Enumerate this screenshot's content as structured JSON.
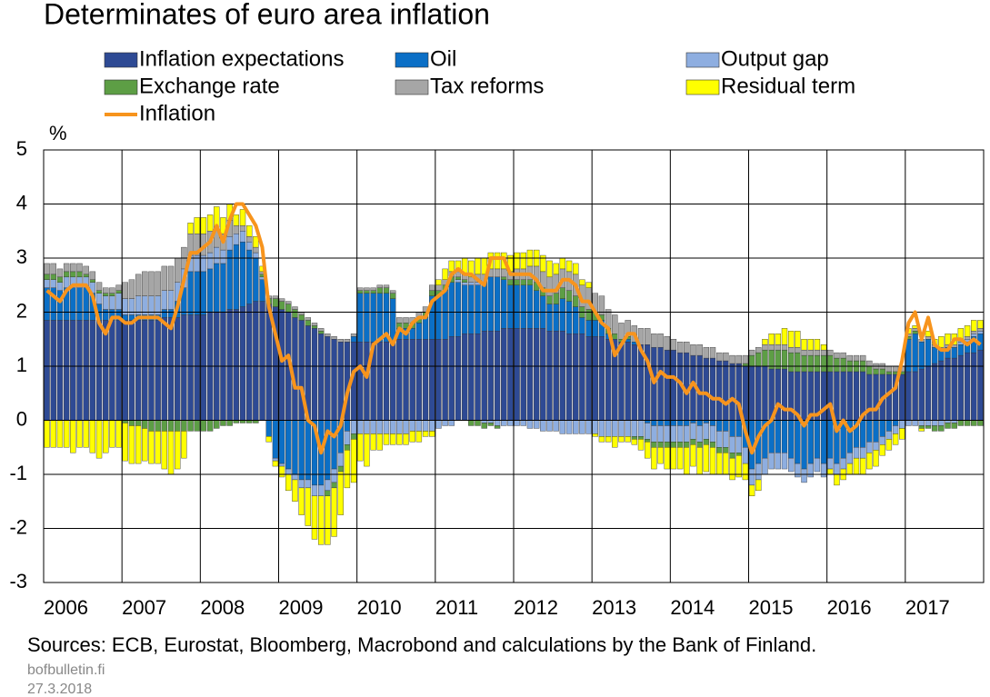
{
  "chart_data": {
    "type": "bar",
    "title": "Determinates of euro area inflation",
    "y_label": "%",
    "sources": "Sources: ECB, Eurostat, Bloomberg, Macrobond and calculations by the Bank of Finland.",
    "site": "bofbulletin.fi",
    "date": "27.3.2018",
    "legend": "top",
    "grid": true,
    "stacked": true,
    "ylim": [
      -3,
      5
    ],
    "yticks": [
      -3,
      -2,
      -1,
      0,
      1,
      2,
      3,
      4,
      5
    ],
    "categories": [
      "2006",
      null,
      null,
      null,
      null,
      null,
      null,
      null,
      null,
      null,
      null,
      null,
      "2007",
      null,
      null,
      null,
      null,
      null,
      null,
      null,
      null,
      null,
      null,
      null,
      "2008",
      null,
      null,
      null,
      null,
      null,
      null,
      null,
      null,
      null,
      null,
      null,
      "2009",
      null,
      null,
      null,
      null,
      null,
      null,
      null,
      null,
      null,
      null,
      null,
      "2010",
      null,
      null,
      null,
      null,
      null,
      null,
      null,
      null,
      null,
      null,
      null,
      "2011",
      null,
      null,
      null,
      null,
      null,
      null,
      null,
      null,
      null,
      null,
      null,
      "2012",
      null,
      null,
      null,
      null,
      null,
      null,
      null,
      null,
      null,
      null,
      null,
      "2013",
      null,
      null,
      null,
      null,
      null,
      null,
      null,
      null,
      null,
      null,
      null,
      "2014",
      null,
      null,
      null,
      null,
      null,
      null,
      null,
      null,
      null,
      null,
      null,
      "2015",
      null,
      null,
      null,
      null,
      null,
      null,
      null,
      null,
      null,
      null,
      null,
      "2016",
      null,
      null,
      null,
      null,
      null,
      null,
      null,
      null,
      null,
      null,
      null,
      "2017",
      null,
      null,
      null,
      null,
      null,
      null,
      null,
      null,
      null,
      null,
      null
    ],
    "series": [
      {
        "name": "Inflation expectations",
        "color": "#2e4a94",
        "type": "bar",
        "values": [
          1.85,
          1.85,
          1.85,
          1.85,
          1.85,
          1.85,
          1.85,
          1.85,
          1.85,
          1.85,
          1.85,
          1.85,
          1.85,
          1.85,
          1.85,
          1.85,
          1.85,
          1.85,
          1.9,
          1.9,
          1.9,
          1.95,
          1.95,
          1.95,
          1.95,
          2.0,
          2.0,
          2.0,
          2.05,
          2.05,
          2.1,
          2.15,
          2.2,
          2.2,
          2.15,
          2.1,
          2.05,
          2.0,
          1.9,
          1.85,
          1.75,
          1.7,
          1.6,
          1.55,
          1.5,
          1.45,
          1.45,
          1.45,
          1.45,
          1.45,
          1.45,
          1.45,
          1.45,
          1.45,
          1.5,
          1.5,
          1.5,
          1.5,
          1.5,
          1.5,
          1.5,
          1.5,
          1.55,
          1.55,
          1.6,
          1.6,
          1.6,
          1.65,
          1.65,
          1.65,
          1.7,
          1.7,
          1.7,
          1.7,
          1.7,
          1.7,
          1.7,
          1.65,
          1.65,
          1.65,
          1.6,
          1.6,
          1.6,
          1.55,
          1.55,
          1.55,
          1.5,
          1.5,
          1.45,
          1.45,
          1.4,
          1.4,
          1.4,
          1.35,
          1.35,
          1.3,
          1.3,
          1.25,
          1.25,
          1.2,
          1.2,
          1.15,
          1.15,
          1.1,
          1.1,
          1.05,
          1.05,
          1.0,
          1.0,
          1.0,
          1.0,
          0.95,
          0.95,
          0.95,
          0.9,
          0.9,
          0.9,
          0.9,
          0.9,
          0.9,
          0.9,
          0.9,
          0.9,
          0.9,
          0.9,
          0.9,
          0.85,
          0.85,
          0.85,
          0.85,
          0.85,
          0.85,
          0.9,
          0.9,
          0.95,
          1.0,
          1.05,
          1.1,
          1.15,
          1.15,
          1.2,
          1.25,
          1.25,
          1.3
        ]
      },
      {
        "name": "Oil",
        "color": "#0b6fc6",
        "type": "bar",
        "values": [
          0.6,
          0.6,
          0.55,
          0.6,
          0.6,
          0.6,
          0.6,
          0.5,
          0.3,
          0.2,
          0.2,
          0.2,
          0.1,
          0.1,
          0.1,
          0.1,
          0.1,
          0.1,
          0.15,
          0.15,
          0.3,
          0.5,
          0.8,
          0.8,
          0.8,
          0.8,
          0.9,
          0.9,
          1.1,
          1.2,
          1.2,
          1.0,
          0.8,
          0.4,
          -0.3,
          -0.7,
          -0.8,
          -0.9,
          -1.0,
          -1.1,
          -1.1,
          -1.2,
          -1.2,
          -1.1,
          -0.9,
          -0.6,
          -0.2,
          0.1,
          0.9,
          0.9,
          0.9,
          0.9,
          0.9,
          0.8,
          0.2,
          0.2,
          0.2,
          0.3,
          0.4,
          0.8,
          0.8,
          0.9,
          1.0,
          1.0,
          0.9,
          0.9,
          0.9,
          0.9,
          1.0,
          1.0,
          0.9,
          0.8,
          0.8,
          0.8,
          0.8,
          0.7,
          0.6,
          0.5,
          0.5,
          0.6,
          0.6,
          0.5,
          0.3,
          0.3,
          0.3,
          0.3,
          0.1,
          0.0,
          0.0,
          0.05,
          0.05,
          0.0,
          -0.05,
          -0.1,
          -0.1,
          -0.1,
          -0.1,
          -0.1,
          -0.1,
          -0.05,
          -0.1,
          -0.05,
          -0.1,
          -0.2,
          -0.2,
          -0.3,
          -0.3,
          -0.5,
          -0.9,
          -0.8,
          -0.7,
          -0.6,
          -0.6,
          -0.6,
          -0.7,
          -0.8,
          -0.9,
          -0.8,
          -0.7,
          -0.8,
          -0.7,
          -0.8,
          -0.7,
          -0.6,
          -0.5,
          -0.5,
          -0.4,
          -0.4,
          -0.3,
          -0.2,
          -0.1,
          0.0,
          0.6,
          0.7,
          0.5,
          0.5,
          0.3,
          0.2,
          0.2,
          0.2,
          0.2,
          0.2,
          0.3,
          0.3
        ]
      },
      {
        "name": "Output gap",
        "color": "#8eaee0",
        "type": "bar",
        "values": [
          0.15,
          0.15,
          0.15,
          0.2,
          0.2,
          0.2,
          0.2,
          0.2,
          0.2,
          0.25,
          0.25,
          0.3,
          0.3,
          0.3,
          0.35,
          0.35,
          0.35,
          0.35,
          0.35,
          0.35,
          0.35,
          0.35,
          0.3,
          0.3,
          0.3,
          0.3,
          0.3,
          0.25,
          0.25,
          0.2,
          0.2,
          0.15,
          0.1,
          0.05,
          0.0,
          -0.05,
          -0.05,
          -0.1,
          -0.1,
          -0.15,
          -0.15,
          -0.2,
          -0.2,
          -0.2,
          -0.25,
          -0.25,
          -0.25,
          -0.25,
          -0.25,
          -0.25,
          -0.25,
          -0.25,
          -0.25,
          -0.25,
          -0.25,
          -0.25,
          -0.2,
          -0.2,
          -0.2,
          -0.2,
          -0.15,
          -0.1,
          -0.1,
          0.05,
          0.05,
          0.05,
          0.05,
          -0.05,
          -0.05,
          -0.1,
          -0.1,
          -0.1,
          -0.1,
          -0.1,
          -0.15,
          -0.15,
          -0.2,
          -0.2,
          -0.2,
          -0.25,
          -0.25,
          -0.25,
          -0.25,
          -0.25,
          -0.25,
          -0.3,
          -0.3,
          -0.3,
          -0.3,
          -0.3,
          -0.3,
          -0.3,
          -0.3,
          -0.3,
          -0.3,
          -0.3,
          -0.3,
          -0.3,
          -0.3,
          -0.3,
          -0.3,
          -0.3,
          -0.3,
          -0.3,
          -0.3,
          -0.3,
          -0.3,
          -0.3,
          -0.3,
          -0.3,
          -0.3,
          -0.3,
          -0.3,
          -0.3,
          -0.25,
          -0.25,
          -0.25,
          -0.25,
          -0.25,
          -0.25,
          -0.2,
          -0.2,
          -0.2,
          -0.2,
          -0.2,
          -0.2,
          -0.2,
          -0.15,
          -0.15,
          -0.15,
          -0.15,
          -0.15,
          -0.1,
          -0.1,
          -0.1,
          -0.1,
          -0.1,
          -0.1,
          -0.05,
          -0.05,
          0.05,
          0.05,
          0.05,
          0.05
        ]
      },
      {
        "name": "Exchange rate",
        "color": "#5d9e45",
        "type": "bar",
        "values": [
          0.1,
          0.1,
          0.1,
          0.1,
          0.1,
          0.1,
          0.05,
          0.05,
          0.05,
          0.05,
          0.05,
          0.05,
          -0.05,
          -0.1,
          -0.1,
          -0.15,
          -0.2,
          -0.2,
          -0.2,
          -0.2,
          -0.2,
          -0.2,
          -0.2,
          -0.2,
          -0.2,
          -0.2,
          -0.15,
          -0.1,
          -0.1,
          -0.05,
          -0.05,
          -0.05,
          -0.05,
          0.05,
          0.1,
          0.15,
          0.15,
          0.15,
          0.15,
          0.1,
          0.1,
          0.05,
          0.05,
          -0.1,
          -0.1,
          -0.1,
          -0.1,
          -0.1,
          0.05,
          0.05,
          0.05,
          0.1,
          0.1,
          0.1,
          0.1,
          0.1,
          0.1,
          0.1,
          0.1,
          0.1,
          0.1,
          0.1,
          0.1,
          0.05,
          0.05,
          -0.1,
          -0.1,
          -0.1,
          -0.05,
          -0.05,
          0.05,
          0.1,
          0.1,
          0.1,
          0.1,
          0.15,
          0.15,
          0.15,
          0.2,
          0.2,
          0.2,
          0.2,
          0.2,
          0.2,
          0.15,
          0.1,
          0.1,
          0.1,
          0.05,
          0.05,
          -0.05,
          -0.05,
          -0.05,
          -0.1,
          -0.1,
          -0.1,
          -0.1,
          -0.1,
          -0.1,
          -0.1,
          -0.1,
          -0.1,
          -0.1,
          -0.1,
          -0.1,
          -0.1,
          -0.05,
          0.05,
          0.2,
          0.25,
          0.3,
          0.35,
          0.35,
          0.35,
          0.35,
          0.35,
          0.3,
          0.3,
          0.3,
          0.3,
          0.3,
          0.25,
          0.25,
          0.2,
          0.2,
          0.2,
          0.15,
          0.1,
          0.1,
          0.05,
          0.05,
          0.05,
          0.05,
          0.05,
          -0.05,
          -0.05,
          -0.1,
          -0.1,
          -0.1,
          -0.1,
          -0.1,
          -0.1,
          -0.1,
          -0.1
        ]
      },
      {
        "name": "Tax reforms",
        "color": "#a6a6a6",
        "type": "bar",
        "values": [
          0.2,
          0.2,
          0.15,
          0.15,
          0.15,
          0.15,
          0.15,
          0.15,
          0.15,
          0.1,
          0.1,
          0.1,
          0.3,
          0.35,
          0.4,
          0.45,
          0.45,
          0.45,
          0.45,
          0.45,
          0.45,
          0.4,
          0.4,
          0.4,
          0.4,
          0.4,
          0.35,
          0.3,
          0.3,
          0.15,
          0.1,
          0.1,
          0.1,
          0.05,
          0.05,
          0.05,
          0.05,
          0.05,
          0.05,
          0.05,
          0.05,
          0.05,
          0.05,
          0.05,
          0.05,
          0.05,
          0.05,
          0.05,
          0.05,
          0.05,
          0.05,
          0.05,
          0.05,
          0.05,
          0.1,
          0.1,
          0.1,
          0.1,
          0.1,
          0.1,
          0.1,
          0.1,
          0.1,
          0.1,
          0.1,
          0.1,
          0.15,
          0.15,
          0.15,
          0.15,
          0.15,
          0.15,
          0.2,
          0.2,
          0.25,
          0.3,
          0.3,
          0.35,
          0.35,
          0.35,
          0.35,
          0.4,
          0.4,
          0.4,
          0.35,
          0.35,
          0.35,
          0.35,
          0.3,
          0.3,
          0.3,
          0.3,
          0.3,
          0.25,
          0.25,
          0.25,
          0.2,
          0.2,
          0.2,
          0.2,
          0.2,
          0.2,
          0.2,
          0.15,
          0.15,
          0.15,
          0.15,
          0.15,
          0.1,
          0.1,
          0.1,
          0.1,
          0.1,
          0.1,
          0.1,
          0.1,
          0.1,
          0.1,
          0.1,
          0.1,
          0.1,
          0.1,
          0.1,
          0.1,
          0.1,
          0.1,
          0.1,
          0.1,
          0.1,
          0.1,
          0.1,
          0.1,
          0.05,
          0.05,
          0.05,
          0.05,
          0.05,
          0.05,
          0.05,
          0.05,
          0.05,
          0.05,
          0.05,
          0.05
        ]
      },
      {
        "name": "Residual term",
        "color": "#ffff00",
        "type": "bar",
        "values": [
          -0.5,
          -0.5,
          -0.5,
          -0.5,
          -0.6,
          -0.5,
          -0.5,
          -0.6,
          -0.7,
          -0.6,
          -0.5,
          -0.5,
          -0.7,
          -0.7,
          -0.7,
          -0.6,
          -0.6,
          -0.6,
          -0.7,
          -0.8,
          -0.7,
          -0.5,
          0.2,
          0.3,
          0.3,
          0.3,
          0.4,
          0.3,
          0.3,
          0.2,
          0.3,
          0.2,
          0.2,
          0.1,
          -0.1,
          -0.1,
          -0.2,
          -0.3,
          -0.4,
          -0.5,
          -0.7,
          -0.8,
          -0.9,
          -0.9,
          -0.9,
          -0.8,
          -0.7,
          -0.8,
          -0.5,
          -0.6,
          -0.3,
          -0.3,
          -0.2,
          -0.2,
          -0.2,
          -0.2,
          -0.2,
          -0.2,
          -0.1,
          -0.1,
          0.1,
          0.2,
          0.2,
          0.2,
          0.3,
          0.3,
          0.3,
          0.3,
          0.3,
          0.3,
          0.3,
          0.3,
          0.3,
          0.3,
          0.3,
          0.3,
          0.3,
          0.3,
          0.2,
          0.2,
          0.2,
          0.2,
          0.1,
          0.1,
          -0.05,
          -0.1,
          -0.1,
          -0.2,
          -0.1,
          -0.1,
          -0.1,
          -0.2,
          -0.3,
          -0.4,
          -0.3,
          -0.4,
          -0.4,
          -0.4,
          -0.5,
          -0.4,
          -0.5,
          -0.5,
          -0.5,
          -0.4,
          -0.4,
          -0.4,
          -0.4,
          -0.3,
          -0.2,
          -0.2,
          0.1,
          0.2,
          0.2,
          0.3,
          0.3,
          0.3,
          0.2,
          0.2,
          0.2,
          0.1,
          -0.1,
          -0.2,
          -0.2,
          -0.2,
          -0.3,
          -0.3,
          -0.3,
          -0.3,
          -0.2,
          -0.2,
          -0.2,
          -0.2,
          0.1,
          0.05,
          -0.05,
          0.1,
          0.1,
          0.2,
          0.2,
          0.2,
          0.2,
          0.2,
          0.2,
          0.15
        ]
      },
      {
        "name": "Inflation",
        "color": "#f7941d",
        "type": "line",
        "values": [
          2.4,
          2.3,
          2.2,
          2.4,
          2.5,
          2.5,
          2.5,
          2.3,
          1.8,
          1.6,
          1.9,
          1.9,
          1.8,
          1.8,
          1.9,
          1.9,
          1.9,
          1.9,
          1.8,
          1.7,
          2.1,
          2.6,
          3.1,
          3.1,
          3.2,
          3.3,
          3.6,
          3.3,
          3.7,
          4.0,
          4.0,
          3.8,
          3.6,
          3.2,
          2.1,
          1.6,
          1.1,
          1.2,
          0.6,
          0.6,
          0.0,
          -0.1,
          -0.6,
          -0.2,
          -0.3,
          -0.1,
          0.5,
          0.9,
          1.0,
          0.8,
          1.4,
          1.5,
          1.6,
          1.4,
          1.7,
          1.6,
          1.8,
          1.9,
          1.9,
          2.2,
          2.3,
          2.4,
          2.7,
          2.8,
          2.7,
          2.7,
          2.6,
          2.5,
          3.0,
          3.0,
          3.0,
          2.7,
          2.7,
          2.7,
          2.7,
          2.6,
          2.4,
          2.4,
          2.4,
          2.6,
          2.6,
          2.5,
          2.2,
          2.2,
          2.0,
          1.8,
          1.7,
          1.2,
          1.4,
          1.6,
          1.6,
          1.3,
          1.1,
          0.7,
          0.9,
          0.8,
          0.8,
          0.7,
          0.5,
          0.7,
          0.5,
          0.5,
          0.4,
          0.4,
          0.3,
          0.4,
          0.3,
          -0.2,
          -0.6,
          -0.3,
          -0.1,
          0.0,
          0.3,
          0.2,
          0.2,
          0.1,
          -0.1,
          0.1,
          0.1,
          0.2,
          0.3,
          -0.2,
          0.0,
          -0.2,
          -0.1,
          0.1,
          0.2,
          0.2,
          0.4,
          0.5,
          0.6,
          1.1,
          1.8,
          2.0,
          1.5,
          1.9,
          1.4,
          1.3,
          1.3,
          1.5,
          1.5,
          1.4,
          1.5,
          1.4
        ]
      }
    ]
  }
}
